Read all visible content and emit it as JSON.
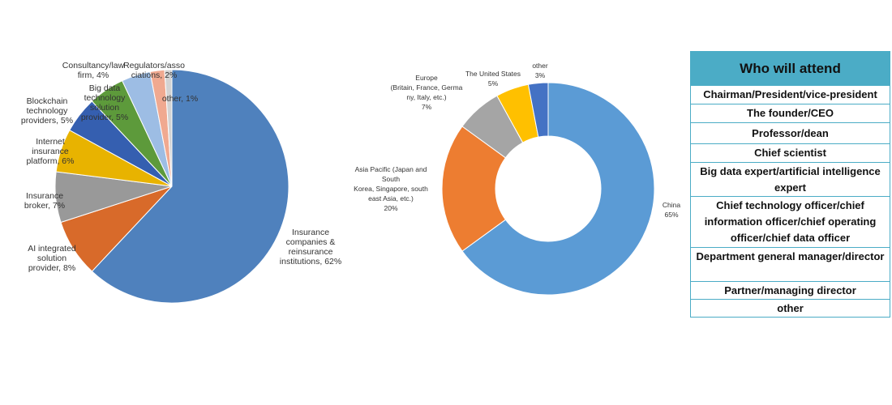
{
  "chart_data": [
    {
      "type": "pie",
      "title": "",
      "labels": [
        "Insurance companies & reinsurance institutions",
        "AI integrated solution provider",
        "Insurance broker",
        "Internet insurance platform",
        "Blockchain technology providers",
        "Big data technology solution provider",
        "Consultancy/law firm",
        "Regulators/associations",
        "other"
      ],
      "values": [
        62,
        8,
        7,
        6,
        5,
        5,
        4,
        2,
        1
      ],
      "unit": "%",
      "colors": [
        "#4f81bd",
        "#d86a2a",
        "#999999",
        "#e8b300",
        "#355fb0",
        "#5d9a3b",
        "#9dbde4",
        "#f0a990",
        "#d3d3d3"
      ],
      "data_labels": [
        [
          "Insurance",
          "companies &",
          "reinsurance",
          "institutions, 62%"
        ],
        [
          "AI integrated",
          "solution",
          "provider, 8%"
        ],
        [
          "Insurance",
          "broker, 7%"
        ],
        [
          "Internet",
          "insurance",
          "platform, 6%"
        ],
        [
          "Blockchain",
          "technology",
          "providers, 5%"
        ],
        [
          "Big data",
          "technology",
          "solution",
          "provider, 5%"
        ],
        [
          "Consultancy/law",
          "firm, 4%"
        ],
        [
          "Regulators/asso",
          "ciations, 2%"
        ],
        [
          "other, 1%"
        ]
      ]
    },
    {
      "type": "pie",
      "subtype": "donut",
      "title": "",
      "labels": [
        "China",
        "Asia Pacific (Japan and South Korea, Singapore, south east Asia, etc.)",
        "Europe (Britain, France, Germany, Italy, etc.)",
        "The United States",
        "other"
      ],
      "values": [
        65,
        20,
        7,
        5,
        3
      ],
      "unit": "%",
      "colors": [
        "#5b9bd5",
        "#ed7d31",
        "#a5a5a5",
        "#ffc000",
        "#4472c4"
      ],
      "data_labels": [
        [
          "China",
          "65%"
        ],
        [
          "Asia Pacific (Japan and",
          "South",
          "Korea, Singapore, south",
          "east Asia, etc.)",
          "20%"
        ],
        [
          "Europe",
          "(Britain, France, Germa",
          "ny, Italy,  etc.)",
          "7%"
        ],
        [
          "The United States",
          "5%"
        ],
        [
          "other",
          "3%"
        ]
      ]
    }
  ],
  "attendees": {
    "title": "Who will attend",
    "rows": [
      "Chairman/President/vice-president",
      "The founder/CEO",
      "Professor/dean",
      "Chief scientist",
      "Big data expert/artificial intelligence expert",
      "Chief technology officer/chief information officer/chief operating officer/chief data officer",
      "Department general manager/director",
      "Partner/managing director",
      "other"
    ]
  }
}
